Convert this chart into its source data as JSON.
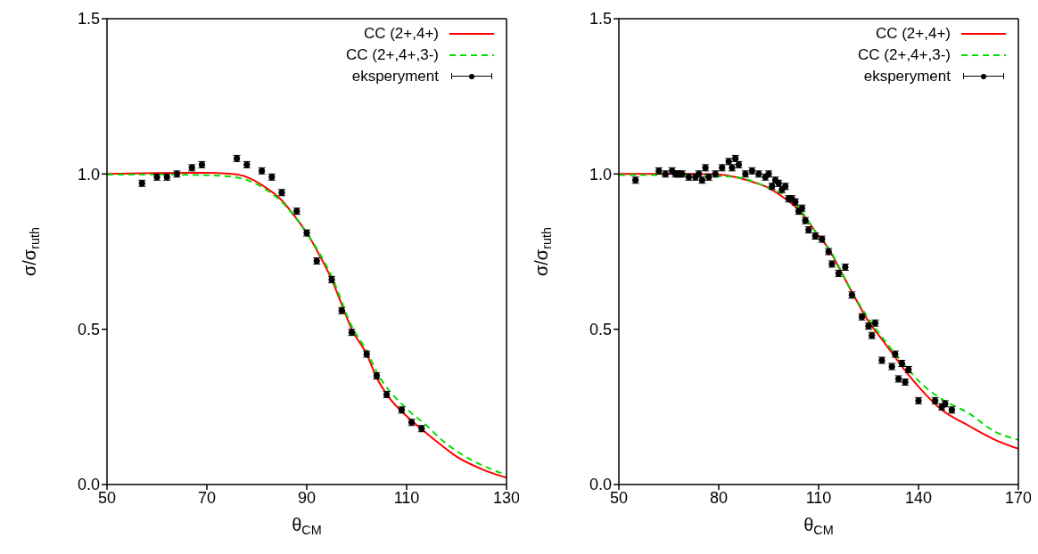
{
  "chart_data": [
    {
      "type": "line",
      "xlabel": "θ$_{CM}$",
      "ylabel": "σ/σ$_{ruth}$",
      "xlim": [
        50,
        130
      ],
      "xticks": [
        50,
        70,
        90,
        110,
        130
      ],
      "ylim": [
        0,
        1.5
      ],
      "yticks": [
        {
          "value": 0,
          "label": "0.0"
        },
        {
          "value": 0.5,
          "label": "0.5"
        },
        {
          "value": 1,
          "label": "1.0"
        },
        {
          "value": 1.5,
          "label": "1.5"
        }
      ],
      "grid": false,
      "legend": "top right",
      "series": [
        {
          "name": "CC (2+,4+)",
          "color": "#ff0000",
          "line_style": "solid",
          "marker": "none",
          "x": [
            50,
            60,
            70,
            75,
            78,
            81,
            85,
            88,
            90,
            92.5,
            95,
            97,
            99,
            102,
            104,
            106.5,
            110,
            114,
            117,
            120,
            125,
            130
          ],
          "values": [
            1.0,
            1.003,
            1.004,
            1.0,
            0.99,
            0.965,
            0.915,
            0.855,
            0.81,
            0.74,
            0.66,
            0.58,
            0.5,
            0.42,
            0.344,
            0.28,
            0.22,
            0.165,
            0.126,
            0.09,
            0.05,
            0.022
          ]
        },
        {
          "name": "CC (2+,4+,3-)",
          "color": "#00e000",
          "line_style": "dashed",
          "marker": "none",
          "x": [
            50,
            60,
            70,
            76,
            81,
            85,
            88,
            90,
            95,
            99,
            102,
            104,
            110,
            114,
            117,
            120,
            125,
            130
          ],
          "values": [
            0.998,
            0.998,
            0.996,
            0.989,
            0.958,
            0.91,
            0.855,
            0.81,
            0.67,
            0.51,
            0.43,
            0.363,
            0.244,
            0.19,
            0.144,
            0.108,
            0.063,
            0.031
          ]
        },
        {
          "name": "eksperyment",
          "type": "scatter",
          "color": "#000000",
          "marker": "circle",
          "x": [
            57,
            60,
            62,
            64,
            67,
            69,
            76,
            78,
            81,
            83,
            85,
            88,
            90,
            92,
            95,
            97,
            99,
            102,
            104,
            106,
            109,
            111,
            113
          ],
          "values": [
            0.97,
            0.99,
            0.99,
            1.0,
            1.02,
            1.03,
            1.05,
            1.03,
            1.01,
            0.99,
            0.94,
            0.88,
            0.81,
            0.72,
            0.66,
            0.56,
            0.49,
            0.42,
            0.35,
            0.29,
            0.24,
            0.2,
            0.18
          ],
          "errors": [
            0.01,
            0.01,
            0.01,
            0.01,
            0.01,
            0.01,
            0.01,
            0.01,
            0.01,
            0.01,
            0.01,
            0.01,
            0.01,
            0.01,
            0.01,
            0.01,
            0.01,
            0.01,
            0.01,
            0.01,
            0.01,
            0.01,
            0.01
          ]
        }
      ]
    },
    {
      "type": "line",
      "xlabel": "θ$_{CM}$",
      "ylabel": "σ/σ$_{ruth}$",
      "xlim": [
        50,
        170
      ],
      "xticks": [
        50,
        80,
        110,
        140,
        170
      ],
      "ylim": [
        0,
        1.5
      ],
      "yticks": [
        {
          "value": 0,
          "label": "0.0"
        },
        {
          "value": 0.5,
          "label": "0.5"
        },
        {
          "value": 1,
          "label": "1.0"
        },
        {
          "value": 1.5,
          "label": "1.5"
        }
      ],
      "grid": false,
      "legend": "top right",
      "series": [
        {
          "name": "CC (2+,4+)",
          "color": "#ff0000",
          "line_style": "solid",
          "marker": "none",
          "x": [
            50,
            70,
            80,
            85,
            90,
            95,
            100,
            104,
            108,
            110,
            113,
            116,
            120,
            125,
            129,
            137,
            140,
            147,
            155,
            163,
            170
          ],
          "values": [
            1.0,
            1.0,
            0.998,
            0.99,
            0.975,
            0.955,
            0.92,
            0.885,
            0.83,
            0.8,
            0.76,
            0.7,
            0.62,
            0.525,
            0.468,
            0.353,
            0.315,
            0.24,
            0.19,
            0.144,
            0.115
          ]
        },
        {
          "name": "CC (2+,4+,3-)",
          "color": "#00e000",
          "line_style": "dashed",
          "marker": "none",
          "x": [
            50,
            70,
            80,
            85,
            94,
            103,
            110,
            113,
            120,
            125,
            129,
            137,
            140,
            147,
            155,
            163,
            170
          ],
          "values": [
            0.997,
            0.997,
            0.993,
            0.99,
            0.96,
            0.905,
            0.8,
            0.76,
            0.62,
            0.534,
            0.475,
            0.37,
            0.334,
            0.275,
            0.23,
            0.17,
            0.144
          ]
        },
        {
          "name": "eksperyment",
          "type": "scatter",
          "color": "#000000",
          "marker": "circle",
          "x": [
            55,
            62,
            64,
            66,
            67,
            68,
            69,
            71,
            73,
            74,
            75,
            76,
            77,
            79,
            81,
            83,
            84,
            85,
            86,
            88,
            90,
            92,
            94,
            95,
            96,
            97,
            98,
            99,
            100,
            101,
            102,
            103,
            104,
            105,
            106,
            107,
            109,
            111,
            113,
            114,
            116,
            118,
            120,
            123,
            125,
            126,
            127,
            129,
            132,
            133,
            134,
            135,
            136,
            137,
            140,
            145,
            147,
            148,
            150
          ],
          "values": [
            0.98,
            1.01,
            1.0,
            1.01,
            1.0,
            1.0,
            1.0,
            0.99,
            0.99,
            1.0,
            0.98,
            1.02,
            0.99,
            1.0,
            1.02,
            1.04,
            1.02,
            1.05,
            1.03,
            1.0,
            1.01,
            1.0,
            0.99,
            1.0,
            0.96,
            0.98,
            0.97,
            0.95,
            0.96,
            0.92,
            0.92,
            0.91,
            0.88,
            0.89,
            0.85,
            0.82,
            0.8,
            0.79,
            0.75,
            0.71,
            0.68,
            0.7,
            0.61,
            0.54,
            0.51,
            0.48,
            0.52,
            0.4,
            0.38,
            0.42,
            0.34,
            0.39,
            0.33,
            0.37,
            0.27,
            0.27,
            0.25,
            0.26,
            0.24
          ],
          "errors": [
            0.01,
            0.01,
            0.01,
            0.01,
            0.01,
            0.01,
            0.01,
            0.01,
            0.01,
            0.01,
            0.01,
            0.01,
            0.01,
            0.01,
            0.01,
            0.01,
            0.01,
            0.01,
            0.01,
            0.01,
            0.01,
            0.01,
            0.01,
            0.01,
            0.01,
            0.01,
            0.01,
            0.01,
            0.01,
            0.01,
            0.01,
            0.01,
            0.01,
            0.01,
            0.01,
            0.01,
            0.01,
            0.01,
            0.01,
            0.01,
            0.01,
            0.01,
            0.01,
            0.01,
            0.01,
            0.01,
            0.01,
            0.01,
            0.01,
            0.01,
            0.01,
            0.01,
            0.01,
            0.01,
            0.01,
            0.01,
            0.01,
            0.01,
            0.01
          ]
        }
      ]
    }
  ]
}
